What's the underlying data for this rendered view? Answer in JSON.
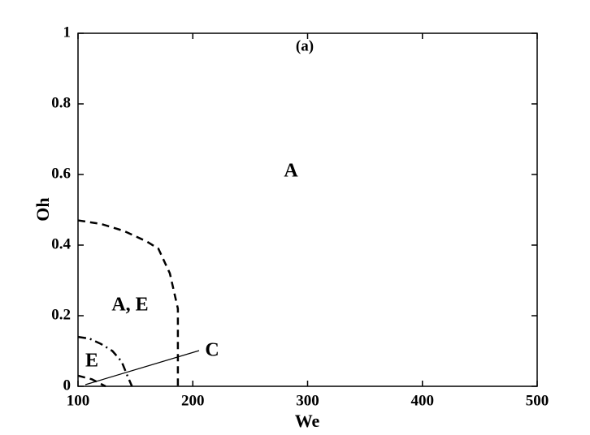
{
  "chart_data": {
    "type": "line",
    "xlabel": "We",
    "ylabel": "Oh",
    "xlim": [
      100,
      500
    ],
    "ylim": [
      0,
      1
    ],
    "xticks": [
      100,
      200,
      300,
      400,
      500
    ],
    "yticks": [
      0,
      0.2,
      0.4,
      0.6,
      0.8,
      1
    ],
    "series": [
      {
        "color": "#000000",
        "dash": "dashed",
        "x": [
          100,
          120,
          140,
          160,
          170,
          180,
          187,
          187
        ],
        "values": [
          0.47,
          0.46,
          0.44,
          0.41,
          0.39,
          0.32,
          0.22,
          0
        ]
      },
      {
        "color": "#000000",
        "dash": "dashdot",
        "x": [
          100,
          110,
          120,
          130,
          138,
          143,
          147
        ],
        "values": [
          0.14,
          0.135,
          0.12,
          0.1,
          0.07,
          0.03,
          0
        ]
      },
      {
        "color": "#000000",
        "dash": "dashed",
        "x": [
          100,
          112,
          124
        ],
        "values": [
          0.03,
          0.02,
          0
        ]
      }
    ],
    "annotations": [
      "(a)",
      "A",
      "A, E",
      "E",
      "C"
    ]
  }
}
